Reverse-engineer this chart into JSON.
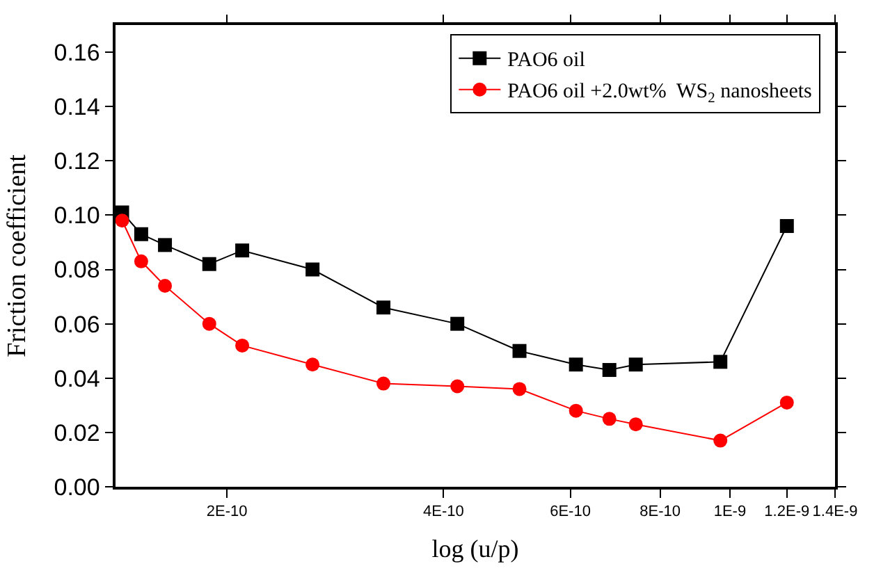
{
  "chart_data": {
    "type": "line",
    "xlabel": "log (u/p)",
    "ylabel": "Friction coefficient",
    "x": [
      1.43e-10,
      1.52e-10,
      1.64e-10,
      1.89e-10,
      2.1e-10,
      2.63e-10,
      3.3e-10,
      4.18e-10,
      5.1e-10,
      6.11e-10,
      6.8e-10,
      7.4e-10,
      9.7e-10,
      1.2e-09
    ],
    "series": [
      {
        "name": "PAO6 oil",
        "color": "#000000",
        "marker": "square",
        "values": [
          0.101,
          0.093,
          0.089,
          0.082,
          0.087,
          0.08,
          0.066,
          0.06,
          0.05,
          0.045,
          0.043,
          0.045,
          0.046,
          0.096
        ]
      },
      {
        "name": "PAO6 oil +2.0wt%  WS$_{2}$ nanosheets",
        "color": "#ff0000",
        "marker": "circle",
        "values": [
          0.098,
          0.083,
          0.074,
          0.06,
          0.052,
          0.045,
          0.038,
          0.037,
          0.036,
          0.028,
          0.025,
          0.023,
          0.017,
          0.031
        ]
      }
    ],
    "log": "x",
    "xlim": [
      1.4e-10,
      1.4e-09
    ],
    "xticks": [
      {
        "value": 2e-10,
        "label": "2E-10"
      },
      {
        "value": 4e-10,
        "label": "4E-10"
      },
      {
        "value": 6e-10,
        "label": "6E-10"
      },
      {
        "value": 8e-10,
        "label": "8E-10"
      },
      {
        "value": 1e-09,
        "label": "1E-9"
      },
      {
        "value": 1.2e-09,
        "label": "1.2E-9"
      },
      {
        "value": 1.4e-09,
        "label": "1.4E-9"
      }
    ],
    "ylim": [
      0,
      0.17
    ],
    "yticks": [
      {
        "value": 0,
        "label": "0.00"
      },
      {
        "value": 0.02,
        "label": "0.02"
      },
      {
        "value": 0.04,
        "label": "0.04"
      },
      {
        "value": 0.06,
        "label": "0.06"
      },
      {
        "value": 0.08,
        "label": "0.08"
      },
      {
        "value": 0.1,
        "label": "0.10"
      },
      {
        "value": 0.12,
        "label": "0.12"
      },
      {
        "value": 0.14,
        "label": "0.14"
      },
      {
        "value": 0.16,
        "label": "0.16"
      }
    ],
    "legend": "top right"
  }
}
